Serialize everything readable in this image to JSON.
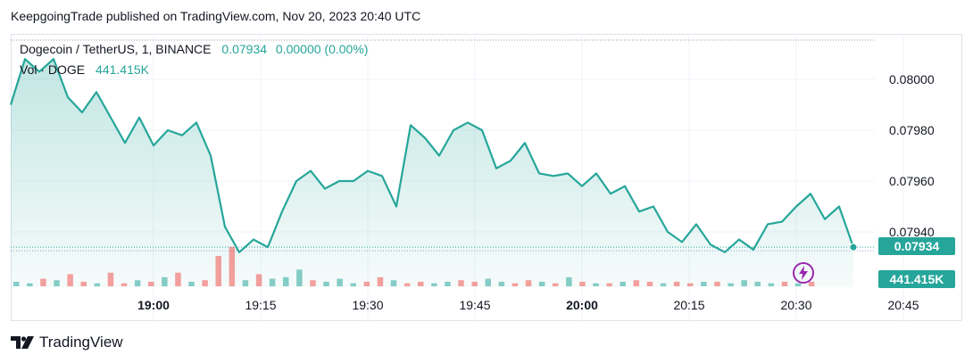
{
  "header": {
    "published_text": "KeepgoingTrade published on TradingView.com, Nov 20, 2023 20:40 UTC"
  },
  "legend": {
    "symbol": "Dogecoin / TetherUS, 1, BINANCE",
    "price": "0.07934",
    "change": "0.00000 (0.00%)",
    "volume_label": "Vol · DOGE",
    "volume_value": "441.415K"
  },
  "tags": {
    "price": "0.07934",
    "volume": "441.415K",
    "price_color": "#26a69a",
    "volume_color": "#26a69a"
  },
  "brand": {
    "name": "TradingView"
  },
  "icons": {
    "logo": "tradingview-logo-icon",
    "alert": "lightning-bolt-icon"
  },
  "colors": {
    "line": "#26a69a",
    "up_volume": "#26a69a",
    "down_volume": "#ef5350"
  },
  "chart_data": {
    "type": "area",
    "x_tick_labels": [
      "19:00",
      "19:15",
      "19:30",
      "19:45",
      "20:00",
      "20:15",
      "20:30",
      "20:45"
    ],
    "y_tick_labels": [
      "0.08000",
      "0.07980",
      "0.07960",
      "0.07940"
    ],
    "ylim": [
      0.07925,
      0.08015
    ],
    "grid": true,
    "series": [
      {
        "name": "Dogecoin / TetherUS",
        "x_minutes_from_1840": [
          0,
          2,
          4,
          6,
          8,
          10,
          12,
          14,
          16,
          18,
          20,
          22,
          24,
          26,
          28,
          30,
          32,
          34,
          36,
          38,
          40,
          42,
          44,
          46,
          48,
          50,
          52,
          54,
          56,
          58,
          60,
          62,
          64,
          66,
          68,
          70,
          72,
          74,
          76,
          78,
          80,
          82,
          84,
          86,
          88,
          90,
          92,
          94,
          96,
          98,
          100,
          102,
          104,
          106,
          108,
          110,
          112,
          114,
          116,
          118
        ],
        "values": [
          0.0799,
          0.08008,
          0.08003,
          0.08008,
          0.07993,
          0.07987,
          0.07995,
          0.07985,
          0.07975,
          0.07985,
          0.07974,
          0.0798,
          0.07978,
          0.07983,
          0.0797,
          0.07942,
          0.07932,
          0.07937,
          0.07934,
          0.07948,
          0.0796,
          0.07964,
          0.07957,
          0.0796,
          0.0796,
          0.07964,
          0.07962,
          0.0795,
          0.07982,
          0.07977,
          0.0797,
          0.0798,
          0.07983,
          0.0798,
          0.07965,
          0.07968,
          0.07975,
          0.07963,
          0.07962,
          0.07963,
          0.07958,
          0.07963,
          0.07955,
          0.07958,
          0.07948,
          0.0795,
          0.0794,
          0.07936,
          0.07943,
          0.07935,
          0.07932,
          0.07937,
          0.07933,
          0.07943,
          0.07944,
          0.0795,
          0.07955,
          0.07945,
          0.0795,
          0.07934
        ]
      }
    ],
    "volume": [
      3,
      2,
      5,
      4,
      8,
      3,
      2,
      9,
      2,
      4,
      3,
      6,
      9,
      3,
      4,
      20,
      26,
      4,
      8,
      5,
      6,
      11,
      4,
      3,
      5,
      2,
      3,
      6,
      4,
      2,
      3,
      2,
      3,
      4,
      3,
      5,
      3,
      2,
      4,
      3,
      2,
      6,
      3,
      2,
      2,
      3,
      4,
      3,
      2,
      3,
      2,
      3,
      3,
      2,
      4,
      3,
      2,
      3,
      2,
      3
    ]
  }
}
